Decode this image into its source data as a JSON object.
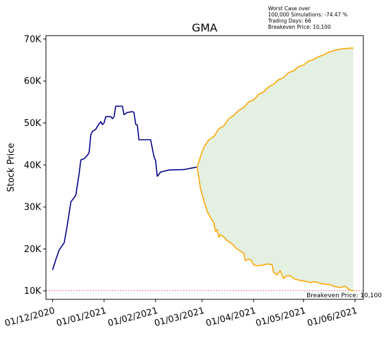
{
  "chart_data": {
    "type": "line",
    "title": "GMA",
    "xlabel": "",
    "ylabel": "Stock Price",
    "x_range": [
      "2020-11-27",
      "2021-06-06"
    ],
    "ylim": [
      8000,
      70800
    ],
    "grid": false,
    "legend": "none",
    "x_ticks": [
      {
        "date": "2020-12-01",
        "label": "01/12/2020"
      },
      {
        "date": "2021-01-01",
        "label": "01/01/2021"
      },
      {
        "date": "2021-02-01",
        "label": "01/02/2021"
      },
      {
        "date": "2021-03-01",
        "label": "01/03/2021"
      },
      {
        "date": "2021-04-01",
        "label": "01/04/2021"
      },
      {
        "date": "2021-05-01",
        "label": "01/05/2021"
      },
      {
        "date": "2021-06-01",
        "label": "01/06/2021"
      }
    ],
    "y_ticks": [
      {
        "value": 10000,
        "label": "10K"
      },
      {
        "value": 20000,
        "label": "20K"
      },
      {
        "value": 30000,
        "label": "30K"
      },
      {
        "value": 40000,
        "label": "40K"
      },
      {
        "value": 50000,
        "label": "50K"
      },
      {
        "value": 60000,
        "label": "60K"
      },
      {
        "value": 70000,
        "label": "70K"
      }
    ],
    "annotations": {
      "worst_case_lines": [
        "Worst Case over",
        "100,000 Simulations: -74.47 %",
        "Trading Days: 66",
        "Breakeven Price: 10,100"
      ],
      "breakeven_label": "Breakeven Price: 10,100"
    },
    "breakeven_price": 10100,
    "colors": {
      "historical": "#00008b",
      "simulation": "#ffa500",
      "fill": "#e3f0e2",
      "breakeven": "#e23b3b"
    },
    "series": [
      {
        "role": "historical",
        "points": [
          [
            "2020-12-01",
            15000
          ],
          [
            "2020-12-03",
            17500
          ],
          [
            "2020-12-05",
            19800
          ],
          [
            "2020-12-08",
            21500
          ],
          [
            "2020-12-10",
            26000
          ],
          [
            "2020-12-12",
            31200
          ],
          [
            "2020-12-15",
            32800
          ],
          [
            "2020-12-17",
            38000
          ],
          [
            "2020-12-18",
            41200
          ],
          [
            "2020-12-20",
            41500
          ],
          [
            "2020-12-22",
            42300
          ],
          [
            "2020-12-23",
            43000
          ],
          [
            "2020-12-24",
            47200
          ],
          [
            "2020-12-25",
            48000
          ],
          [
            "2020-12-27",
            48500
          ],
          [
            "2020-12-28",
            49200
          ],
          [
            "2020-12-30",
            50300
          ],
          [
            "2020-12-31",
            49600
          ],
          [
            "2021-01-01",
            50000
          ],
          [
            "2021-01-02",
            51500
          ],
          [
            "2021-01-05",
            51500
          ],
          [
            "2021-01-06",
            51000
          ],
          [
            "2021-01-07",
            51500
          ],
          [
            "2021-01-08",
            54000
          ],
          [
            "2021-01-12",
            54000
          ],
          [
            "2021-01-13",
            52000
          ],
          [
            "2021-01-15",
            52500
          ],
          [
            "2021-01-18",
            52700
          ],
          [
            "2021-01-19",
            52500
          ],
          [
            "2021-01-20",
            49700
          ],
          [
            "2021-01-21",
            49500
          ],
          [
            "2021-01-22",
            46000
          ],
          [
            "2021-01-29",
            46000
          ],
          [
            "2021-01-31",
            42000
          ],
          [
            "2021-02-01",
            41000
          ],
          [
            "2021-02-02",
            37300
          ],
          [
            "2021-02-04",
            38300
          ],
          [
            "2021-02-06",
            38500
          ],
          [
            "2021-02-09",
            38800
          ],
          [
            "2021-02-18",
            38900
          ],
          [
            "2021-02-22",
            39200
          ],
          [
            "2021-02-26",
            39500
          ]
        ]
      },
      {
        "role": "simulation-upper",
        "points": [
          [
            "2021-02-26",
            39500
          ],
          [
            "2021-02-28",
            42000
          ],
          [
            "2021-03-02",
            44200
          ],
          [
            "2021-03-05",
            46000
          ],
          [
            "2021-03-08",
            46700
          ],
          [
            "2021-03-11",
            48600
          ],
          [
            "2021-03-14",
            49300
          ],
          [
            "2021-03-17",
            51000
          ],
          [
            "2021-03-20",
            51800
          ],
          [
            "2021-03-23",
            53000
          ],
          [
            "2021-03-26",
            53700
          ],
          [
            "2021-03-29",
            55000
          ],
          [
            "2021-04-01",
            55500
          ],
          [
            "2021-04-04",
            56800
          ],
          [
            "2021-04-07",
            57400
          ],
          [
            "2021-04-10",
            58600
          ],
          [
            "2021-04-13",
            59200
          ],
          [
            "2021-04-16",
            60300
          ],
          [
            "2021-04-19",
            60800
          ],
          [
            "2021-04-22",
            62000
          ],
          [
            "2021-04-25",
            62400
          ],
          [
            "2021-04-28",
            63400
          ],
          [
            "2021-05-01",
            63800
          ],
          [
            "2021-05-04",
            64700
          ],
          [
            "2021-05-07",
            65100
          ],
          [
            "2021-05-10",
            65800
          ],
          [
            "2021-05-13",
            66200
          ],
          [
            "2021-05-16",
            66800
          ],
          [
            "2021-05-19",
            67200
          ],
          [
            "2021-05-22",
            67500
          ],
          [
            "2021-05-25",
            67700
          ],
          [
            "2021-05-28",
            67800
          ],
          [
            "2021-05-31",
            67850
          ]
        ]
      },
      {
        "role": "simulation-lower",
        "points": [
          [
            "2021-02-26",
            39500
          ],
          [
            "2021-02-27",
            37000
          ],
          [
            "2021-02-28",
            34500
          ],
          [
            "2021-03-02",
            31500
          ],
          [
            "2021-03-04",
            29000
          ],
          [
            "2021-03-06",
            27500
          ],
          [
            "2021-03-08",
            26300
          ],
          [
            "2021-03-09",
            24200
          ],
          [
            "2021-03-10",
            24600
          ],
          [
            "2021-03-11",
            22800
          ],
          [
            "2021-03-12",
            23400
          ],
          [
            "2021-03-14",
            22900
          ],
          [
            "2021-03-16",
            22000
          ],
          [
            "2021-03-18",
            21500
          ],
          [
            "2021-03-20",
            20800
          ],
          [
            "2021-03-22",
            20000
          ],
          [
            "2021-03-24",
            19500
          ],
          [
            "2021-03-26",
            19000
          ],
          [
            "2021-03-27",
            17200
          ],
          [
            "2021-03-29",
            17600
          ],
          [
            "2021-03-31",
            17100
          ],
          [
            "2021-04-01",
            16200
          ],
          [
            "2021-04-03",
            16000
          ],
          [
            "2021-04-06",
            16100
          ],
          [
            "2021-04-09",
            16400
          ],
          [
            "2021-04-12",
            16300
          ],
          [
            "2021-04-13",
            14500
          ],
          [
            "2021-04-15",
            13800
          ],
          [
            "2021-04-17",
            14800
          ],
          [
            "2021-04-19",
            13000
          ],
          [
            "2021-04-21",
            13600
          ],
          [
            "2021-04-23",
            13600
          ],
          [
            "2021-04-26",
            12800
          ],
          [
            "2021-04-29",
            12500
          ],
          [
            "2021-05-02",
            12300
          ],
          [
            "2021-05-05",
            12000
          ],
          [
            "2021-05-08",
            12200
          ],
          [
            "2021-05-11",
            11800
          ],
          [
            "2021-05-14",
            11600
          ],
          [
            "2021-05-17",
            11500
          ],
          [
            "2021-05-20",
            11000
          ],
          [
            "2021-05-23",
            10800
          ],
          [
            "2021-05-26",
            11100
          ],
          [
            "2021-05-29",
            10200
          ],
          [
            "2021-05-31",
            10000
          ]
        ]
      }
    ]
  }
}
